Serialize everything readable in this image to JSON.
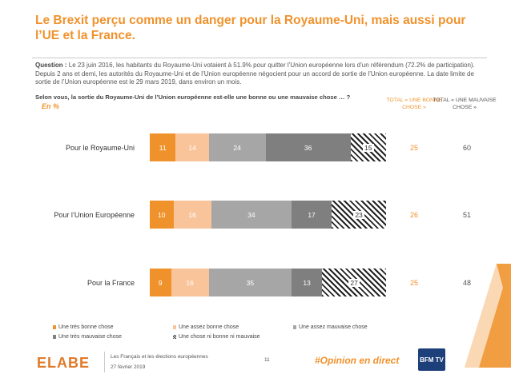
{
  "title": "Le Brexit perçu comme un danger pour la Royaume-Uni, mais aussi pour l’UE et la France.",
  "question_label": "Question :",
  "question_text": "Le 23 juin 2016, les habitants du Royaume-Uni votaient à 51.9% pour quitter l’Union européenne lors d’un référendum (72.2% de participation). Depuis 2 ans et demi, les autorités du Royaume-Uni et de l’Union européenne négocient pour un accord de sortie de l’Union européenne. La date limite de sortie de l’Union européenne est le 29 mars 2019, dans environ un mois.",
  "ask": "Selon vous, la sortie du Royaume-Uni de l’Union européenne est-elle une bonne ou une mauvaise chose … ?",
  "unit": "En %",
  "col_good": "TOTAL « UNE BONNE CHOSE »",
  "col_bad": "TOTAL « UNE MAUVAISE CHOSE »",
  "colors": {
    "tres_bonne": "#f0922c",
    "assez_bonne": "#f9c49a",
    "assez_mauvaise": "#a6a6a6",
    "tres_mauvaise": "#7f7f7f",
    "ni": "hatched"
  },
  "chart_data": {
    "type": "bar",
    "orientation": "horizontal",
    "stacked": true,
    "categories": [
      "Pour le Royaume-Uni",
      "Pour l’Union Européenne",
      "Pour la France"
    ],
    "series": [
      {
        "name": "Une très bonne chose",
        "values": [
          11,
          10,
          9
        ]
      },
      {
        "name": "Une assez bonne chose",
        "values": [
          14,
          16,
          16
        ]
      },
      {
        "name": "Une assez mauvaise chose",
        "values": [
          24,
          34,
          35
        ]
      },
      {
        "name": "Une très mauvaise chose",
        "values": [
          36,
          17,
          13
        ]
      },
      {
        "name": "Une chose ni bonne ni mauvaise",
        "values": [
          15,
          23,
          27
        ]
      }
    ],
    "total_good": [
      25,
      26,
      25
    ],
    "total_bad": [
      60,
      51,
      48
    ],
    "legend_position": "bottom"
  },
  "footer": {
    "brand": "ELABE",
    "line1": "Les Français et les élections européennes",
    "line2": "27 février 2019",
    "page": "11",
    "hashtag": "#Opinion en direct",
    "partner": "BFM TV"
  }
}
